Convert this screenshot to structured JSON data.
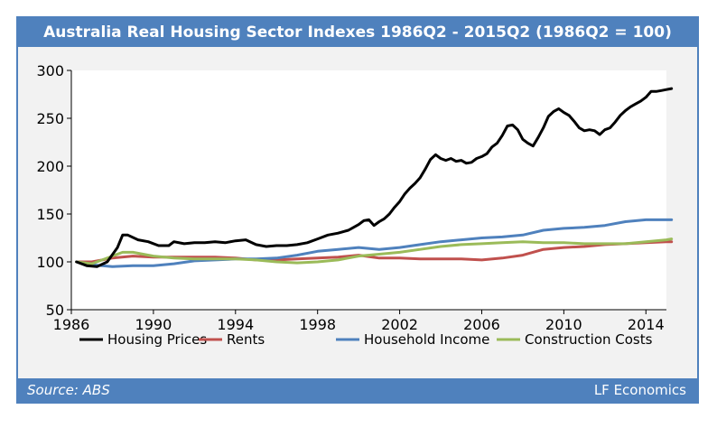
{
  "header": {
    "title": "Australia Real Housing Sector Indexes 1986Q2 - 2015Q2 (1986Q2 = 100)"
  },
  "footer": {
    "source": "Source: ABS",
    "credit": "LF Economics"
  },
  "colors": {
    "frame": "#4f81bd",
    "background": "#f2f2f2"
  },
  "chart_data": {
    "type": "line",
    "title": "Australia Real Housing Sector Indexes 1986Q2 - 2015Q2 (1986Q2 = 100)",
    "xlabel": "",
    "ylabel": "",
    "xlim": [
      1986,
      2015
    ],
    "ylim": [
      50,
      300
    ],
    "xticks": [
      1986,
      1990,
      1994,
      1998,
      2002,
      2006,
      2010,
      2014
    ],
    "yticks": [
      50,
      100,
      150,
      200,
      250,
      300
    ],
    "grid": false,
    "legend": "bottom",
    "series": [
      {
        "name": "Housing Prices",
        "color": "#000000",
        "x": [
          1986.25,
          1986.75,
          1987.25,
          1987.75,
          1988.25,
          1988.5,
          1988.75,
          1989.25,
          1989.75,
          1990.25,
          1990.75,
          1991.0,
          1991.5,
          1992.0,
          1992.5,
          1993.0,
          1993.5,
          1994.0,
          1994.5,
          1995.0,
          1995.5,
          1996.0,
          1996.5,
          1997.0,
          1997.5,
          1998.0,
          1998.5,
          1999.0,
          1999.5,
          2000.0,
          2000.25,
          2000.5,
          2000.75,
          2001.0,
          2001.25,
          2001.5,
          2001.75,
          2002.0,
          2002.25,
          2002.5,
          2002.75,
          2003.0,
          2003.25,
          2003.5,
          2003.75,
          2004.0,
          2004.25,
          2004.5,
          2004.75,
          2005.0,
          2005.25,
          2005.5,
          2005.75,
          2006.0,
          2006.25,
          2006.5,
          2006.75,
          2007.0,
          2007.25,
          2007.5,
          2007.75,
          2008.0,
          2008.25,
          2008.5,
          2008.75,
          2009.0,
          2009.25,
          2009.5,
          2009.75,
          2010.0,
          2010.25,
          2010.5,
          2010.75,
          2011.0,
          2011.25,
          2011.5,
          2011.75,
          2012.0,
          2012.25,
          2012.5,
          2012.75,
          2013.0,
          2013.25,
          2013.5,
          2013.75,
          2014.0,
          2014.25,
          2014.5,
          2014.75,
          2015.0,
          2015.25
        ],
        "values": [
          100,
          96,
          95,
          100,
          115,
          128,
          128,
          123,
          121,
          117,
          117,
          121,
          119,
          120,
          120,
          121,
          120,
          122,
          123,
          118,
          116,
          117,
          117,
          118,
          120,
          124,
          128,
          130,
          133,
          139,
          143,
          144,
          138,
          142,
          145,
          150,
          157,
          163,
          171,
          177,
          182,
          188,
          197,
          207,
          212,
          208,
          206,
          208,
          205,
          206,
          203,
          204,
          208,
          210,
          213,
          220,
          224,
          232,
          242,
          243,
          238,
          228,
          224,
          221,
          230,
          240,
          252,
          257,
          260,
          256,
          253,
          247,
          240,
          237,
          238,
          237,
          233,
          238,
          240,
          246,
          253,
          258,
          262,
          265,
          268,
          272,
          278,
          278,
          279,
          280,
          281
        ]
      },
      {
        "name": "Rents",
        "color": "#c0504d",
        "x": [
          1986.25,
          1987.0,
          1988.0,
          1989.0,
          1990.0,
          1991.0,
          1992.0,
          1993.0,
          1994.0,
          1995.0,
          1996.0,
          1997.0,
          1998.0,
          1999.0,
          2000.0,
          2001.0,
          2002.0,
          2003.0,
          2004.0,
          2005.0,
          2006.0,
          2007.0,
          2008.0,
          2009.0,
          2010.0,
          2011.0,
          2012.0,
          2013.0,
          2014.0,
          2015.0,
          2015.25
        ],
        "values": [
          100,
          100,
          104,
          106,
          105,
          105,
          105,
          105,
          104,
          102,
          102,
          103,
          104,
          105,
          107,
          104,
          104,
          103,
          103,
          103,
          102,
          104,
          107,
          113,
          115,
          116,
          118,
          119,
          120,
          121,
          121
        ]
      },
      {
        "name": "Household Income",
        "color": "#4f81bd",
        "x": [
          1986.25,
          1987.0,
          1988.0,
          1989.0,
          1990.0,
          1991.0,
          1992.0,
          1993.0,
          1994.0,
          1995.0,
          1996.0,
          1997.0,
          1998.0,
          1999.0,
          2000.0,
          2001.0,
          2002.0,
          2003.0,
          2004.0,
          2005.0,
          2006.0,
          2007.0,
          2008.0,
          2009.0,
          2010.0,
          2011.0,
          2012.0,
          2013.0,
          2014.0,
          2015.0,
          2015.25
        ],
        "values": [
          100,
          97,
          95,
          96,
          96,
          98,
          101,
          102,
          103,
          103,
          104,
          107,
          111,
          113,
          115,
          113,
          115,
          118,
          121,
          123,
          125,
          126,
          128,
          133,
          135,
          136,
          138,
          142,
          144,
          144,
          144
        ]
      },
      {
        "name": "Construction Costs",
        "color": "#9bbb59",
        "x": [
          1986.25,
          1987.0,
          1988.0,
          1988.5,
          1989.0,
          1990.0,
          1991.0,
          1992.0,
          1993.0,
          1994.0,
          1995.0,
          1996.0,
          1997.0,
          1998.0,
          1999.0,
          2000.0,
          2001.0,
          2002.0,
          2003.0,
          2004.0,
          2005.0,
          2006.0,
          2007.0,
          2008.0,
          2009.0,
          2010.0,
          2011.0,
          2012.0,
          2013.0,
          2014.0,
          2015.0,
          2015.25
        ],
        "values": [
          100,
          98,
          106,
          110,
          110,
          106,
          104,
          103,
          103,
          103,
          102,
          100,
          99,
          100,
          102,
          106,
          108,
          110,
          113,
          116,
          118,
          119,
          120,
          121,
          120,
          120,
          119,
          119,
          119,
          121,
          123,
          124
        ]
      }
    ]
  }
}
